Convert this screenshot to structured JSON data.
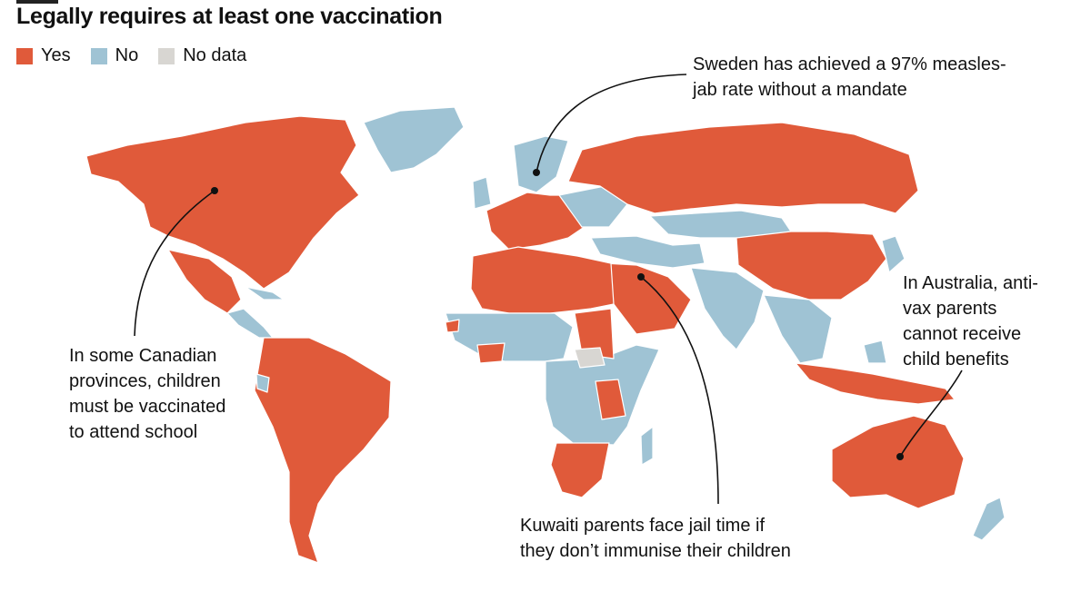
{
  "title": "Legally requires at least one vaccination",
  "colors": {
    "yes": "#e05a3a",
    "no": "#9fc3d4",
    "no_data": "#d8d6d2",
    "border": "#ffffff",
    "leader": "#111111"
  },
  "legend": [
    {
      "label": "Yes",
      "color": "#e05a3a"
    },
    {
      "label": "No",
      "color": "#9fc3d4"
    },
    {
      "label": "No data",
      "color": "#d8d6d2"
    }
  ],
  "annotations": {
    "sweden": "Sweden has achieved a 97% measles-\njab rate without a mandate",
    "canada": "In some Canadian\nprovinces, children\nmust be vaccinated\nto attend school",
    "australia": "In Australia, anti-\nvax parents\ncannot receive\nchild benefits",
    "kuwait": "Kuwaiti parents face jail time if\nthey don’t immunise their children"
  }
}
